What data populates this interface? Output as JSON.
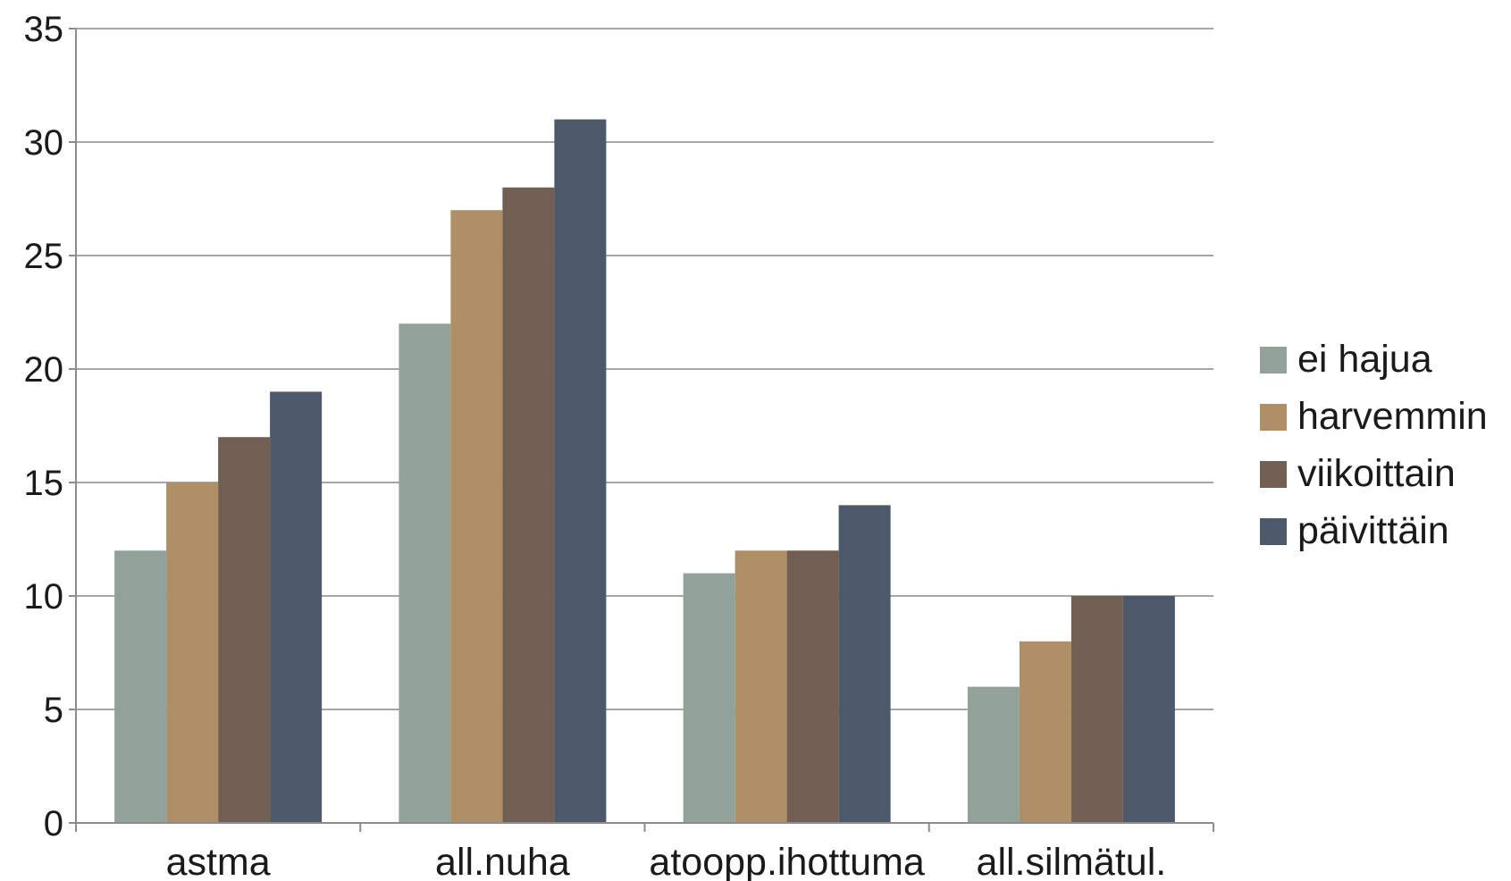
{
  "chart_data": {
    "type": "bar",
    "title": "",
    "xlabel": "",
    "ylabel": "",
    "categories": [
      "astma",
      "all.nuha",
      "atoopp.ihottuma",
      "all.silmätul."
    ],
    "series": [
      {
        "name": "ei hajua",
        "color": "#93a298",
        "values": [
          12,
          22,
          11,
          6
        ]
      },
      {
        "name": "harvemmin",
        "color": "#ae8f66",
        "values": [
          15,
          27,
          12,
          8
        ]
      },
      {
        "name": "viikoittain",
        "color": "#725f54",
        "values": [
          17,
          28,
          12,
          10
        ]
      },
      {
        "name": "päivittäin",
        "color": "#4b596a",
        "values": [
          19,
          31,
          14,
          10
        ]
      }
    ],
    "ylim": [
      0,
      35
    ],
    "yticks": [
      0,
      5,
      10,
      15,
      20,
      25,
      30,
      35
    ],
    "grid": true,
    "legend_position": "right",
    "colors": {
      "gridline": "#a6a6a6",
      "axis": "#8c8c8c",
      "text": "#1a1a1a"
    }
  }
}
